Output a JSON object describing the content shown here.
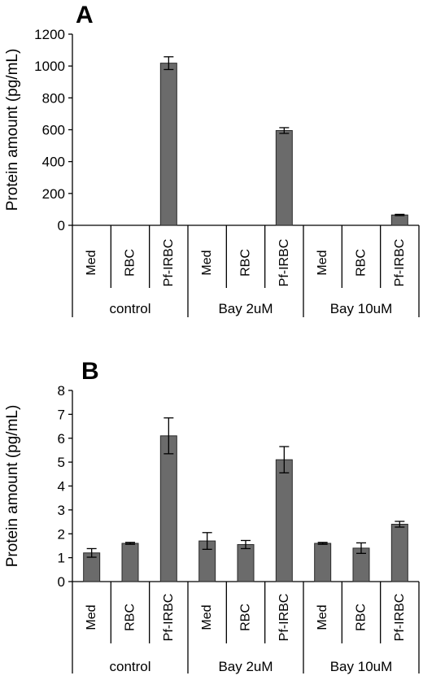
{
  "chart_data": [
    {
      "type": "bar",
      "panel_label": "A",
      "ylabel": "Protein amount (pg/mL)",
      "ylim": [
        0,
        1200
      ],
      "yticks": [
        0,
        200,
        400,
        600,
        800,
        1000,
        1200
      ],
      "categories": [
        "Med",
        "RBC",
        "Pf-IRBC",
        "Med",
        "RBC",
        "Pf-IRBC",
        "Med",
        "RBC",
        "Pf-IRBC"
      ],
      "groups": [
        "control",
        "Bay 2uM",
        "Bay 10uM"
      ],
      "values": [
        0,
        0,
        1018,
        0,
        0,
        595,
        0,
        0,
        65
      ],
      "errors": [
        0,
        0,
        40,
        0,
        0,
        18,
        0,
        0,
        4
      ],
      "bar_color": "#6b6b6b"
    },
    {
      "type": "bar",
      "panel_label": "B",
      "ylabel": "Protein amount (pg/mL)",
      "ylim": [
        0,
        8
      ],
      "yticks": [
        0,
        1,
        2,
        3,
        4,
        5,
        6,
        7,
        8
      ],
      "categories": [
        "Med",
        "RBC",
        "Pf-IRBC",
        "Med",
        "RBC",
        "Pf-IRBC",
        "Med",
        "RBC",
        "Pf-IRBC"
      ],
      "groups": [
        "control",
        "Bay 2uM",
        "Bay 10uM"
      ],
      "values": [
        1.2,
        1.6,
        6.1,
        1.7,
        1.55,
        5.1,
        1.6,
        1.4,
        2.4
      ],
      "errors": [
        0.18,
        0.04,
        0.75,
        0.35,
        0.17,
        0.55,
        0.04,
        0.22,
        0.12
      ],
      "bar_color": "#6b6b6b"
    }
  ]
}
